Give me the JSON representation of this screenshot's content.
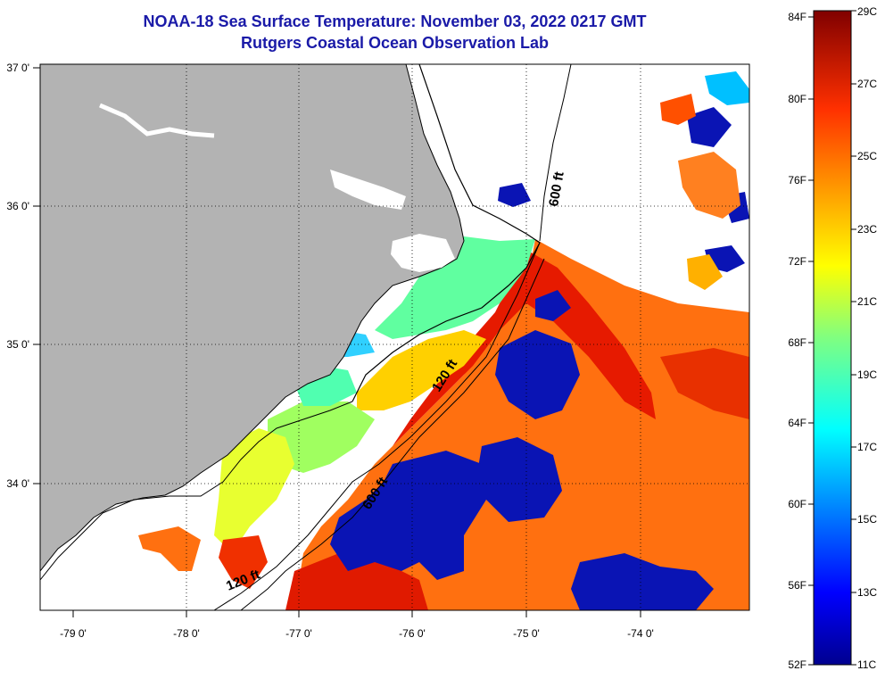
{
  "title": "NOAA-18 Sea Surface Temperature:  November 03, 2022 0217 GMT",
  "subtitle": "Rutgers Coastal Ocean Observation Lab",
  "lon_labels": [
    "-79 0'",
    "-78 0'",
    "-77 0'",
    "-76 0'",
    "-75 0'",
    "-74 0'"
  ],
  "lat_labels": [
    "37 0'",
    "36 0'",
    "35 0'",
    "34 0'"
  ],
  "isobath_labels": [
    "600 ft",
    "120 ft",
    "600 ft",
    "120 ft"
  ],
  "colorbar": {
    "fahrenheit": [
      "84F",
      "80F",
      "76F",
      "72F",
      "68F",
      "64F",
      "60F",
      "56F",
      "52F"
    ],
    "celsius": [
      "29C",
      "27C",
      "25C",
      "23C",
      "21C",
      "19C",
      "17C",
      "15C",
      "13C",
      "11C"
    ],
    "range_c": [
      11,
      29
    ]
  },
  "colors": {
    "land": "#b3b3b3",
    "title": "#1a1aa8",
    "no_data": "#ffffff"
  }
}
